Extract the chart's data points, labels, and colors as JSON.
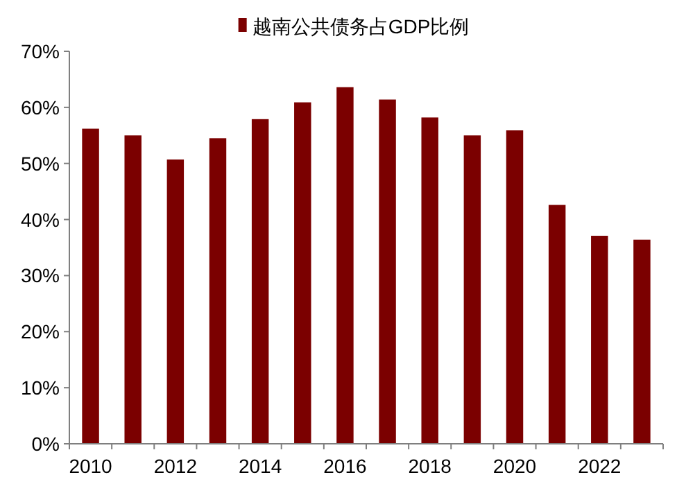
{
  "chart_data": {
    "type": "bar",
    "legend": "top",
    "categories": [
      "2010",
      null,
      "2012",
      null,
      "2014",
      null,
      "2016",
      null,
      "2018",
      null,
      "2020",
      null,
      "2022",
      null
    ],
    "series": [
      {
        "name": "越南公共债务占GDP比例",
        "color": "#7b0000",
        "values": [
          56.2,
          55.0,
          50.7,
          54.5,
          57.9,
          60.9,
          63.6,
          61.4,
          58.2,
          55.0,
          55.9,
          42.6,
          37.1,
          36.4
        ]
      }
    ],
    "ylim": [
      0,
      70
    ],
    "yticks": [
      {
        "value": 0,
        "label": "0%"
      },
      {
        "value": 10,
        "label": "10%"
      },
      {
        "value": 20,
        "label": "20%"
      },
      {
        "value": 30,
        "label": "30%"
      },
      {
        "value": 40,
        "label": "40%"
      },
      {
        "value": 50,
        "label": "50%"
      },
      {
        "value": 60,
        "label": "60%"
      },
      {
        "value": 70,
        "label": "70%"
      }
    ]
  }
}
